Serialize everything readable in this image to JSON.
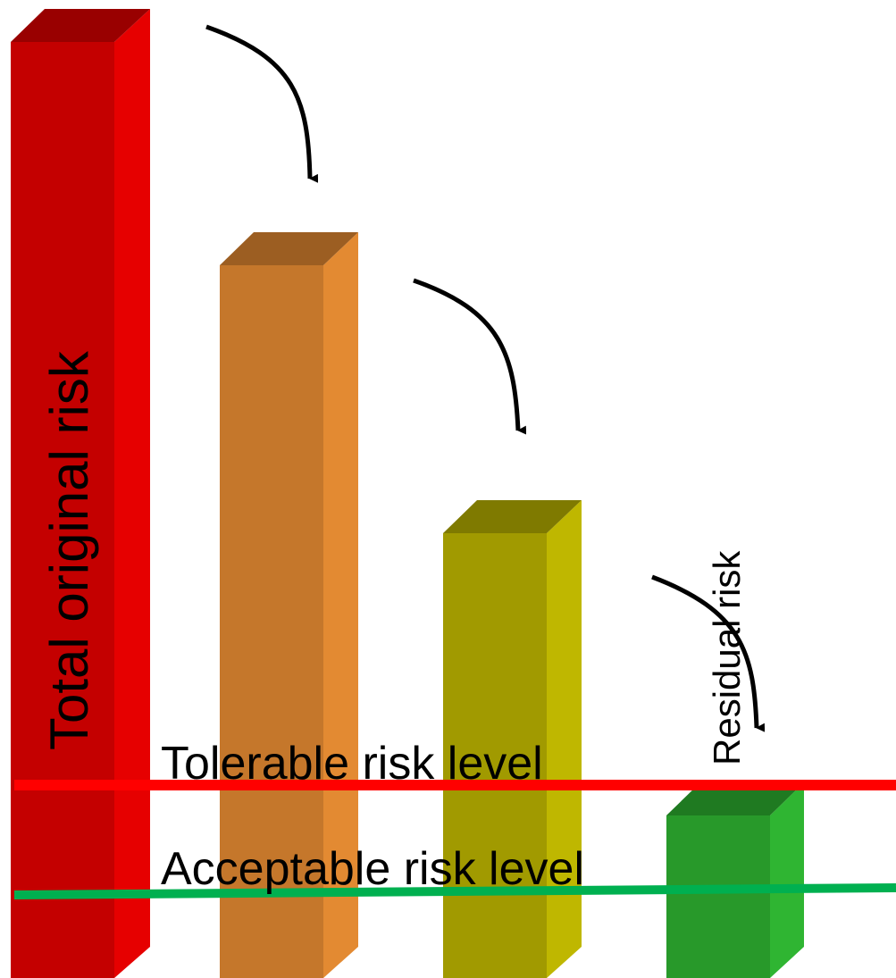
{
  "diagram": {
    "bars": [
      {
        "id": "bar-total-original-risk",
        "label": "Total original risk",
        "relative_height": 1.0,
        "colors": {
          "front": "#c40000",
          "side": "#e60000",
          "top": "#990000"
        }
      },
      {
        "id": "bar-2",
        "label": "",
        "relative_height": 0.79,
        "colors": {
          "front": "#c5772b",
          "side": "#e38a32",
          "top": "#9c5e22"
        }
      },
      {
        "id": "bar-3",
        "label": "",
        "relative_height": 0.53,
        "colors": {
          "front": "#a19a00",
          "side": "#bfb700",
          "top": "#7f7a00"
        }
      },
      {
        "id": "bar-residual-risk",
        "label": "Residual risk",
        "relative_height": 0.16,
        "colors": {
          "front": "#28992a",
          "side": "#2fb532",
          "top": "#1f7a21"
        }
      }
    ],
    "levels": [
      {
        "id": "tolerable",
        "label": "Tolerable risk level",
        "color": "#ff0000"
      },
      {
        "id": "acceptable",
        "label": "Acceptable risk level",
        "color": "#00b050"
      }
    ],
    "arrow_color": "#000000"
  }
}
